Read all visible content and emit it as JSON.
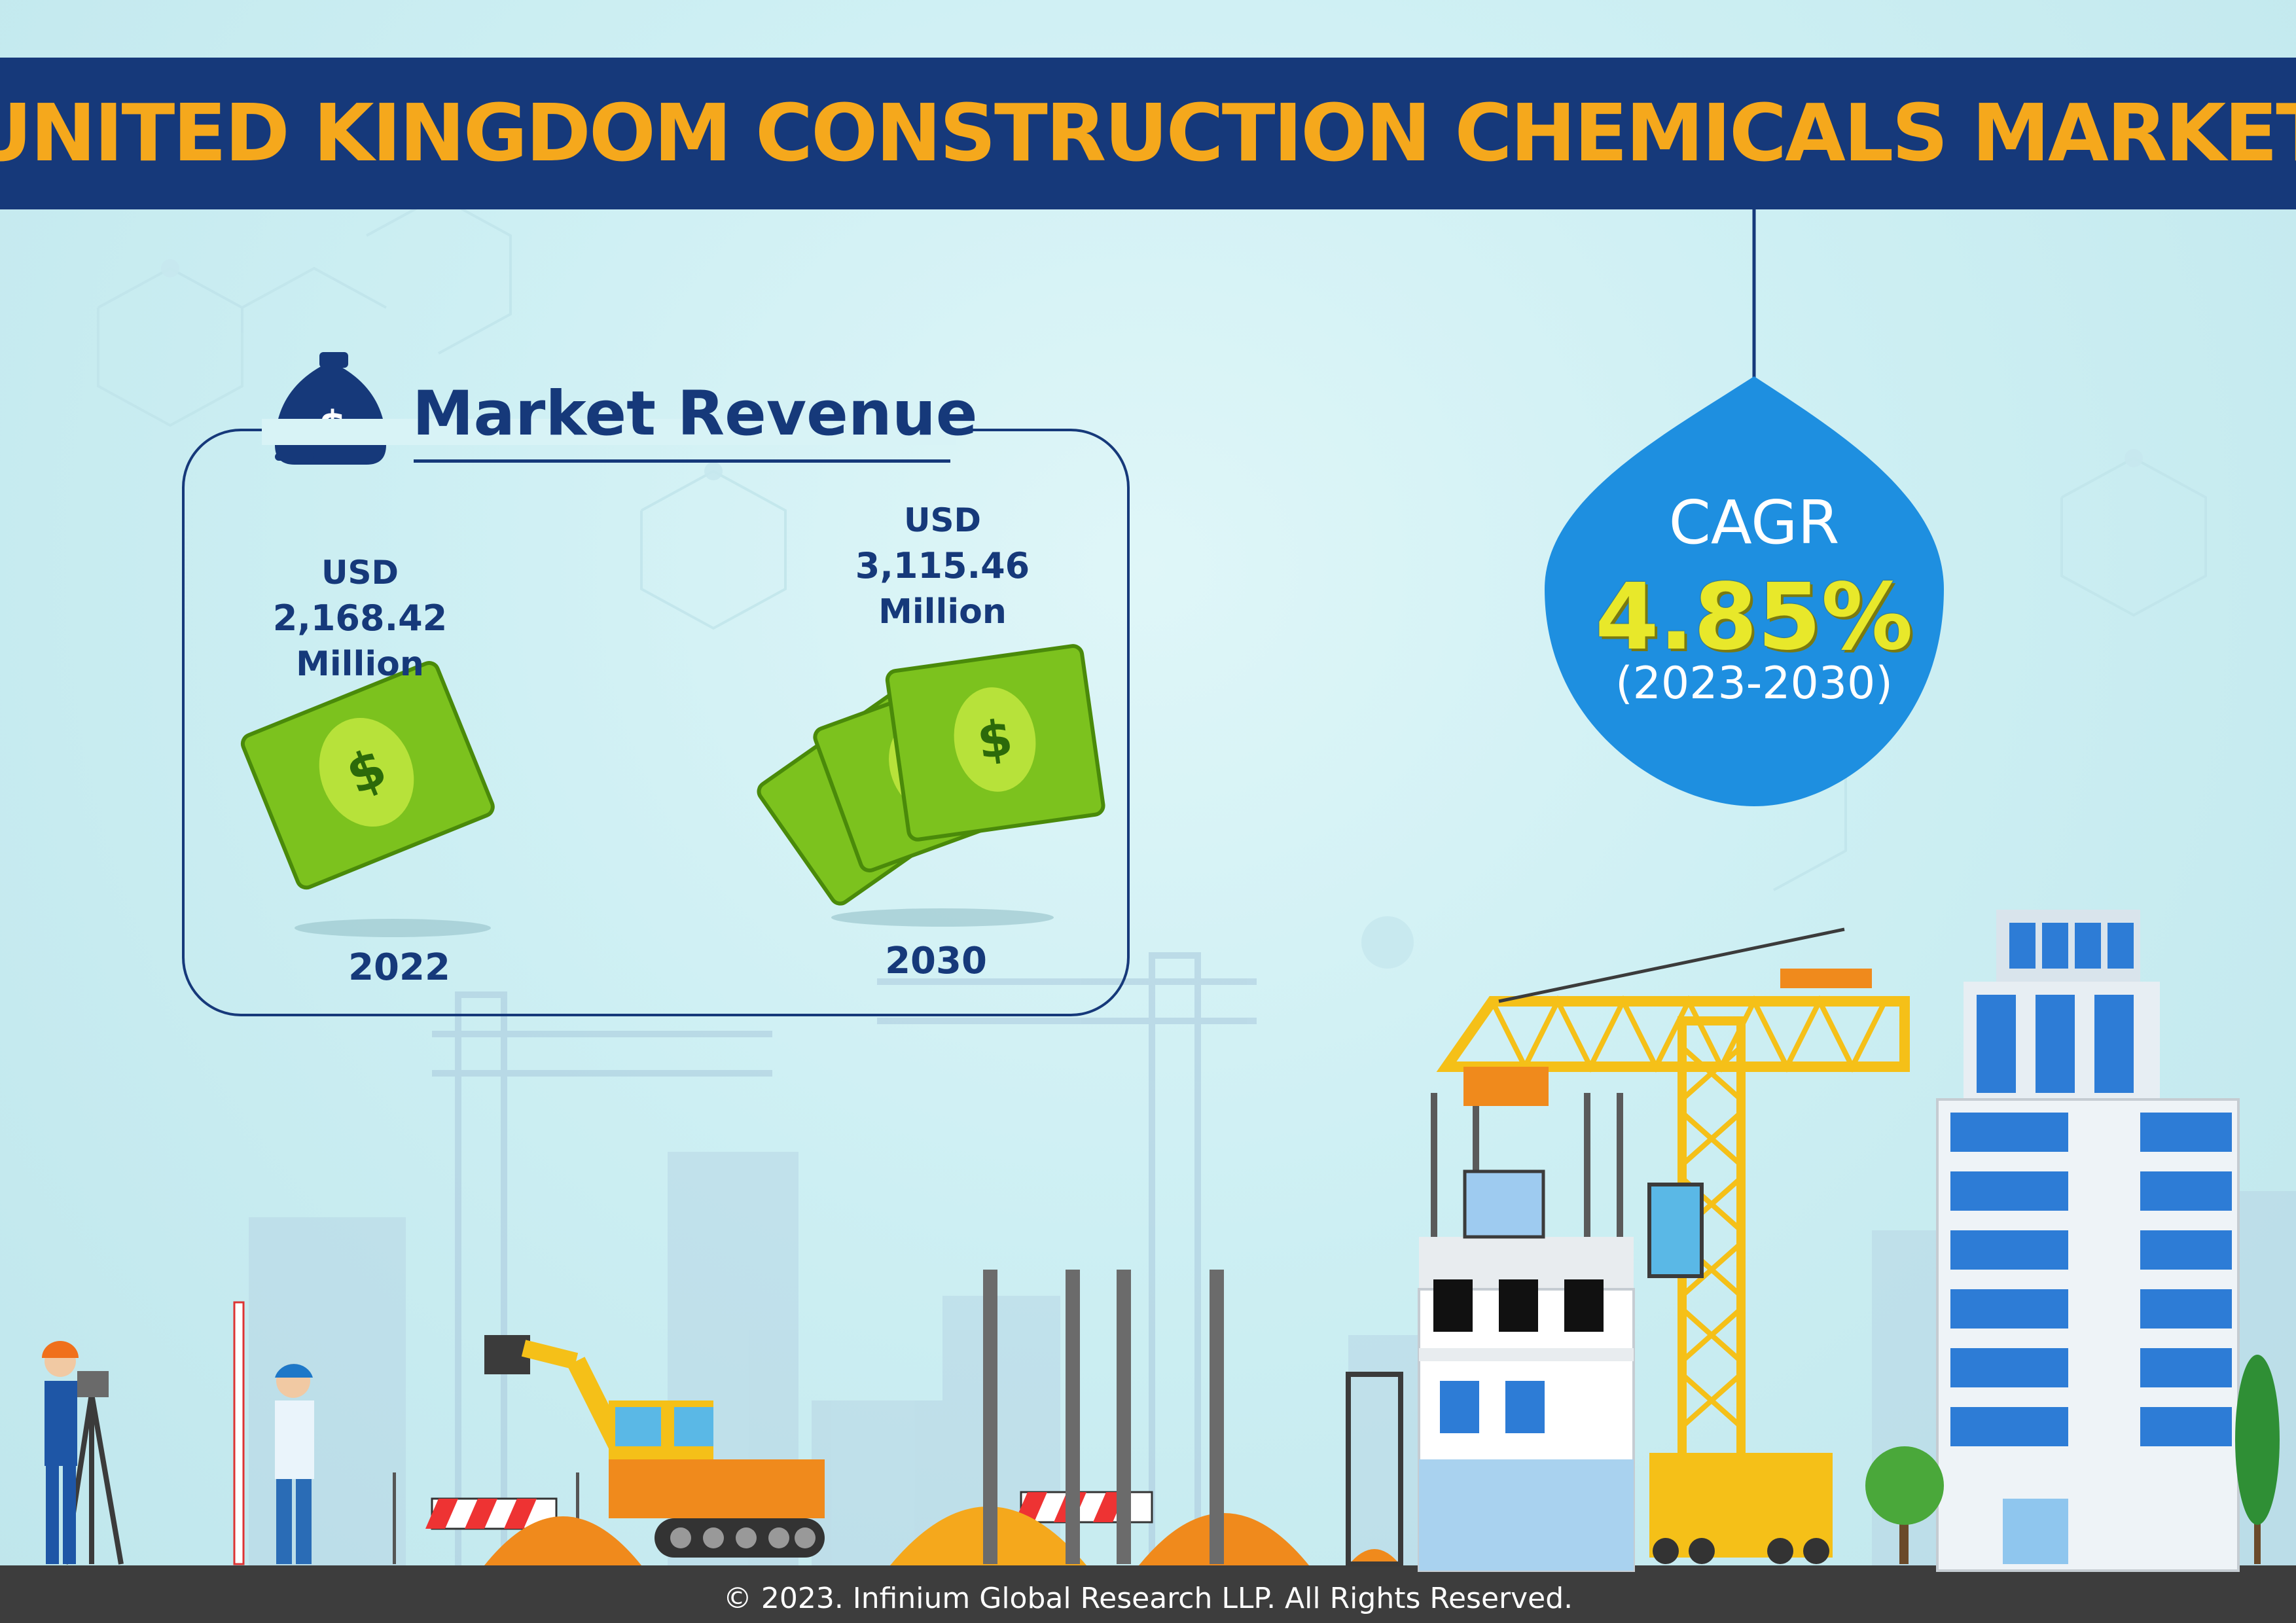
{
  "header": {
    "title": "UNITED KINGDOM CONSTRUCTION CHEMICALS MARKET"
  },
  "market_revenue": {
    "title": "Market Revenue",
    "year_2022": {
      "currency": "USD",
      "value": "2,168.42",
      "unit": "Million",
      "year": "2022"
    },
    "year_2030": {
      "currency": "USD",
      "value": "3,115.46",
      "unit": "Million",
      "year": "2030"
    }
  },
  "cagr": {
    "label": "CAGR",
    "value": "4.85%",
    "period": "(2023-2030)"
  },
  "footer": {
    "copyright": "© 2023. Infinium Global Research LLP. All Rights Reserved."
  },
  "colors": {
    "navy": "#16397a",
    "orange": "#f5a81c",
    "drop_blue": "#1e8fe0",
    "cagr_yellow": "#e8e82a",
    "money_green": "#7cc21e"
  },
  "icons": [
    "money-bag-icon",
    "dollar-bill-icon",
    "money-stack-icon",
    "crane-icon",
    "excavator-icon",
    "surveyor-icon",
    "building-icon",
    "tree-icon"
  ]
}
